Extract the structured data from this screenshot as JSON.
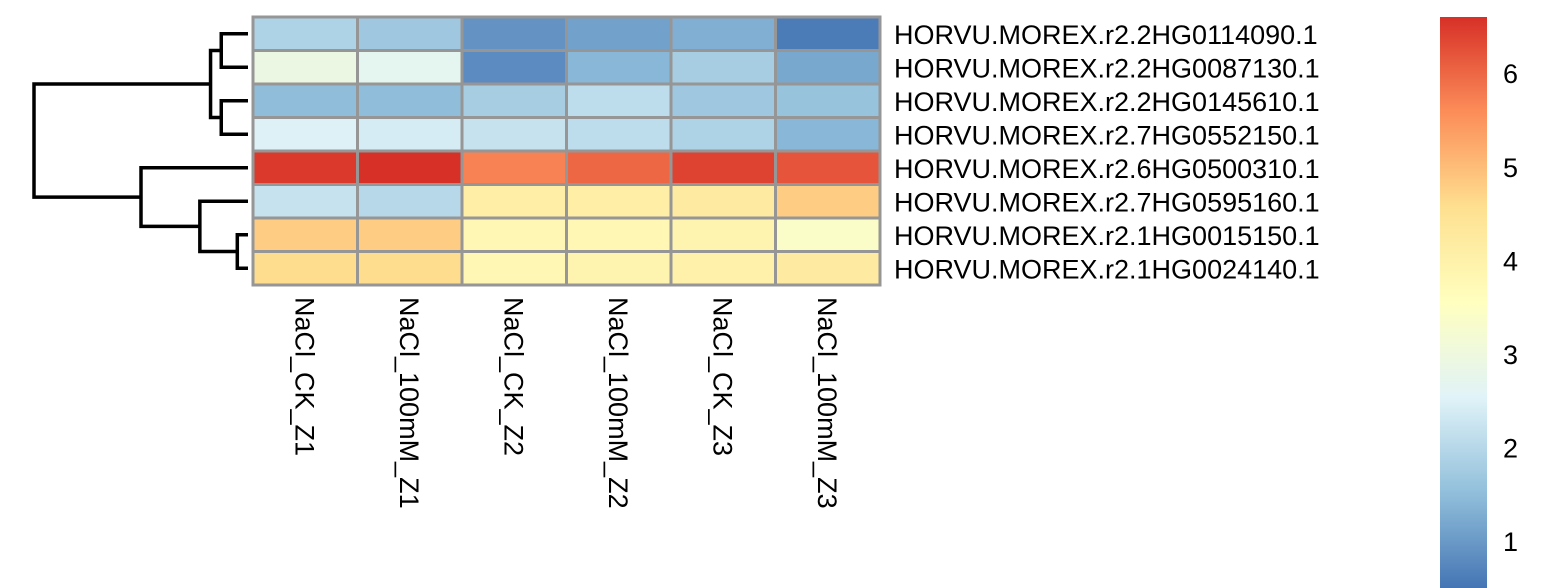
{
  "chart_data": {
    "type": "heatmap",
    "title": "",
    "columns": [
      "NaCl_CK_Z1",
      "NaCl_100mM_Z1",
      "NaCl_CK_Z2",
      "NaCl_100mM_Z2",
      "NaCl_CK_Z3",
      "NaCl_100mM_Z3"
    ],
    "rows": [
      "HORVU.MOREX.r2.2HG0114090.1",
      "HORVU.MOREX.r2.2HG0087130.1",
      "HORVU.MOREX.r2.2HG0145610.1",
      "HORVU.MOREX.r2.7HG0552150.1",
      "HORVU.MOREX.r2.6HG0500310.1",
      "HORVU.MOREX.r2.7HG0595160.1",
      "HORVU.MOREX.r2.1HG0015150.1",
      "HORVU.MOREX.r2.1HG0024140.1"
    ],
    "values": [
      [
        1.9,
        1.7,
        0.9,
        1.1,
        1.3,
        0.6
      ],
      [
        2.9,
        2.7,
        0.8,
        1.4,
        1.8,
        1.2
      ],
      [
        1.5,
        1.5,
        1.8,
        2.1,
        1.7,
        1.6
      ],
      [
        2.5,
        2.4,
        2.2,
        2.1,
        1.9,
        1.4
      ],
      [
        6.5,
        6.6,
        5.7,
        6.0,
        6.4,
        6.2
      ],
      [
        2.2,
        2.0,
        4.1,
        4.1,
        4.2,
        4.8
      ],
      [
        4.8,
        4.8,
        3.8,
        3.8,
        3.9,
        3.4
      ],
      [
        4.6,
        4.6,
        3.8,
        3.9,
        4.0,
        4.2
      ]
    ],
    "color_scale": {
      "min": 0.5,
      "max": 6.6,
      "ticks": [
        1,
        2,
        3,
        4,
        5,
        6
      ],
      "colors": [
        "#4575B4",
        "#91BFDB",
        "#E0F3F8",
        "#FFFFBF",
        "#FEE090",
        "#FC8D59",
        "#D73027"
      ]
    },
    "row_dendrogram": {
      "merges": [
        [
          0,
          1,
          0.25
        ],
        [
          2,
          3,
          0.25
        ],
        [
          6,
          7,
          0.1
        ],
        [
          5,
          "c",
          0.45
        ],
        [
          "a",
          "b",
          0.35
        ],
        [
          4,
          "d",
          1.0
        ],
        [
          "e",
          "f",
          2.0
        ]
      ]
    },
    "grid_color": "#969696"
  }
}
